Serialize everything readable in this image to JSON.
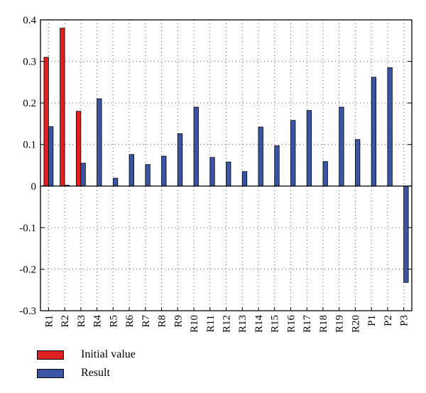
{
  "chart_data": {
    "type": "bar",
    "categories": [
      "R1",
      "R2",
      "R3",
      "R4",
      "R5",
      "R6",
      "R7",
      "R8",
      "R9",
      "R10",
      "R11",
      "R12",
      "R13",
      "R14",
      "R15",
      "R16",
      "R17",
      "R18",
      "R19",
      "R20",
      "P1",
      "P2",
      "P3"
    ],
    "series": [
      {
        "name": "Initial value",
        "color": "#e02020",
        "values": [
          0.31,
          0.38,
          0.18,
          0,
          0,
          0,
          0,
          0,
          0,
          0,
          0,
          0,
          0,
          0,
          0,
          0,
          0,
          0,
          0,
          0,
          0,
          0,
          0
        ]
      },
      {
        "name": "Result",
        "color": "#3a55a4",
        "values": [
          0.143,
          0.002,
          0.055,
          0.21,
          0.019,
          0.076,
          0.052,
          0.072,
          0.126,
          0.19,
          0.069,
          0.058,
          0.035,
          0.142,
          0.097,
          0.158,
          0.182,
          0.059,
          0.19,
          0.112,
          0.262,
          0.285,
          -0.232
        ]
      }
    ],
    "ylim": [
      -0.3,
      0.4
    ],
    "yticks": [
      0.4,
      0.3,
      0.2,
      0.1,
      0,
      -0.1,
      -0.2,
      -0.3
    ],
    "ytick_labels": [
      "0.4",
      "0.3",
      "0.2",
      "0.1",
      "0",
      "-0.1",
      "-0.2",
      "-0.3"
    ],
    "grid": "dotted",
    "legend_position": "bottom-left"
  }
}
